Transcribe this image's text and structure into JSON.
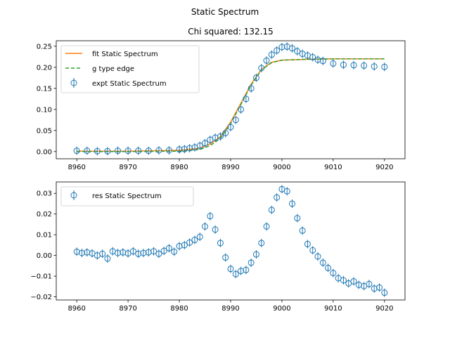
{
  "figure": {
    "suptitle": "Static Spectrum",
    "colors": {
      "fit": "#ff7f0e",
      "edge": "#2ca02c",
      "expt": "#1f77b4"
    }
  },
  "chart_data": [
    {
      "type": "scatter",
      "title": "Chi squared:  132.15",
      "xlim": [
        8956,
        9024
      ],
      "ylim": [
        -0.017,
        0.263
      ],
      "xticks": [
        8960,
        8970,
        8980,
        8990,
        9000,
        9010,
        9020
      ],
      "xtick_labels": [
        "8960",
        "8970",
        "8980",
        "8990",
        "9000",
        "9010",
        "9020"
      ],
      "yticks": [
        0.0,
        0.05,
        0.1,
        0.15,
        0.2,
        0.25
      ],
      "ytick_labels": [
        "0.00",
        "0.05",
        "0.10",
        "0.15",
        "0.20",
        "0.25"
      ],
      "legend_position": "upper-left",
      "series": [
        {
          "name": "fit Static Spectrum",
          "kind": "line",
          "x": [
            8960,
            8970,
            8980,
            8984,
            8986,
            8988,
            8990,
            8992,
            8994,
            8996,
            8998,
            9000,
            9005,
            9010,
            9020
          ],
          "y": [
            0.001,
            0.001,
            0.003,
            0.008,
            0.018,
            0.035,
            0.07,
            0.115,
            0.16,
            0.195,
            0.212,
            0.217,
            0.219,
            0.22,
            0.22
          ]
        },
        {
          "name": "g type edge",
          "kind": "dashed-line",
          "x": [
            8960,
            8970,
            8980,
            8984,
            8986,
            8988,
            8990,
            8992,
            8994,
            8996,
            8998,
            9000,
            9005,
            9010,
            9020
          ],
          "y": [
            0.0,
            0.0,
            0.001,
            0.005,
            0.014,
            0.031,
            0.066,
            0.112,
            0.158,
            0.194,
            0.211,
            0.217,
            0.219,
            0.22,
            0.22
          ]
        },
        {
          "name": "expt Static Spectrum",
          "kind": "points",
          "x": [
            8960,
            8962,
            8964,
            8966,
            8968,
            8970,
            8972,
            8974,
            8976,
            8978,
            8980,
            8981,
            8982,
            8983,
            8984,
            8985,
            8986,
            8987,
            8988,
            8989,
            8990,
            8991,
            8992,
            8993,
            8994,
            8995,
            8996,
            8997,
            8998,
            8999,
            9000,
            9001,
            9002,
            9003,
            9004,
            9005,
            9006,
            9007,
            9008,
            9010,
            9012,
            9014,
            9016,
            9018,
            9020
          ],
          "y": [
            0.002,
            0.002,
            0.001,
            0.001,
            0.002,
            0.002,
            0.002,
            0.002,
            0.003,
            0.003,
            0.005,
            0.006,
            0.008,
            0.01,
            0.014,
            0.02,
            0.028,
            0.033,
            0.036,
            0.044,
            0.058,
            0.075,
            0.1,
            0.125,
            0.15,
            0.175,
            0.198,
            0.216,
            0.23,
            0.24,
            0.248,
            0.249,
            0.245,
            0.238,
            0.232,
            0.228,
            0.224,
            0.218,
            0.215,
            0.209,
            0.206,
            0.205,
            0.204,
            0.202,
            0.201
          ]
        }
      ]
    },
    {
      "type": "scatter",
      "title": "",
      "xlim": [
        8956,
        9024
      ],
      "ylim": [
        -0.0215,
        0.0355
      ],
      "xticks": [
        8960,
        8970,
        8980,
        8990,
        9000,
        9010,
        9020
      ],
      "xtick_labels": [
        "8960",
        "8970",
        "8980",
        "8990",
        "9000",
        "9010",
        "9020"
      ],
      "yticks": [
        -0.02,
        -0.01,
        0.0,
        0.01,
        0.02,
        0.03
      ],
      "ytick_labels": [
        "−0.02",
        "−0.01",
        "0.00",
        "0.01",
        "0.02",
        "0.03"
      ],
      "legend_position": "upper-left",
      "series": [
        {
          "name": "res Static Spectrum",
          "kind": "points",
          "x": [
            8960,
            8961,
            8962,
            8963,
            8964,
            8965,
            8966,
            8967,
            8968,
            8969,
            8970,
            8971,
            8972,
            8973,
            8974,
            8975,
            8976,
            8977,
            8978,
            8979,
            8980,
            8981,
            8982,
            8983,
            8984,
            8985,
            8986,
            8987,
            8988,
            8989,
            8990,
            8991,
            8992,
            8993,
            8994,
            8995,
            8996,
            8997,
            8998,
            8999,
            9000,
            9001,
            9002,
            9003,
            9004,
            9005,
            9006,
            9007,
            9008,
            9009,
            9010,
            9011,
            9012,
            9013,
            9014,
            9015,
            9016,
            9017,
            9018,
            9019,
            9020
          ],
          "y": [
            0.0018,
            0.0012,
            0.0015,
            0.001,
            0.0,
            0.0008,
            -0.0015,
            0.002,
            0.0012,
            0.0015,
            0.001,
            0.002,
            0.0008,
            0.0012,
            0.0015,
            0.002,
            0.0008,
            0.0022,
            0.0035,
            0.0018,
            0.0045,
            0.005,
            0.0062,
            0.0075,
            0.009,
            0.014,
            0.019,
            0.0125,
            0.006,
            -0.001,
            -0.0065,
            -0.009,
            -0.0075,
            -0.007,
            -0.0035,
            0.0005,
            0.006,
            0.014,
            0.022,
            0.028,
            0.032,
            0.031,
            0.025,
            0.018,
            0.012,
            0.0055,
            0.0025,
            -0.0005,
            -0.0035,
            -0.006,
            -0.0085,
            -0.011,
            -0.012,
            -0.0135,
            -0.0125,
            -0.0142,
            -0.0148,
            -0.0138,
            -0.016,
            -0.0155,
            -0.018
          ]
        }
      ]
    }
  ]
}
